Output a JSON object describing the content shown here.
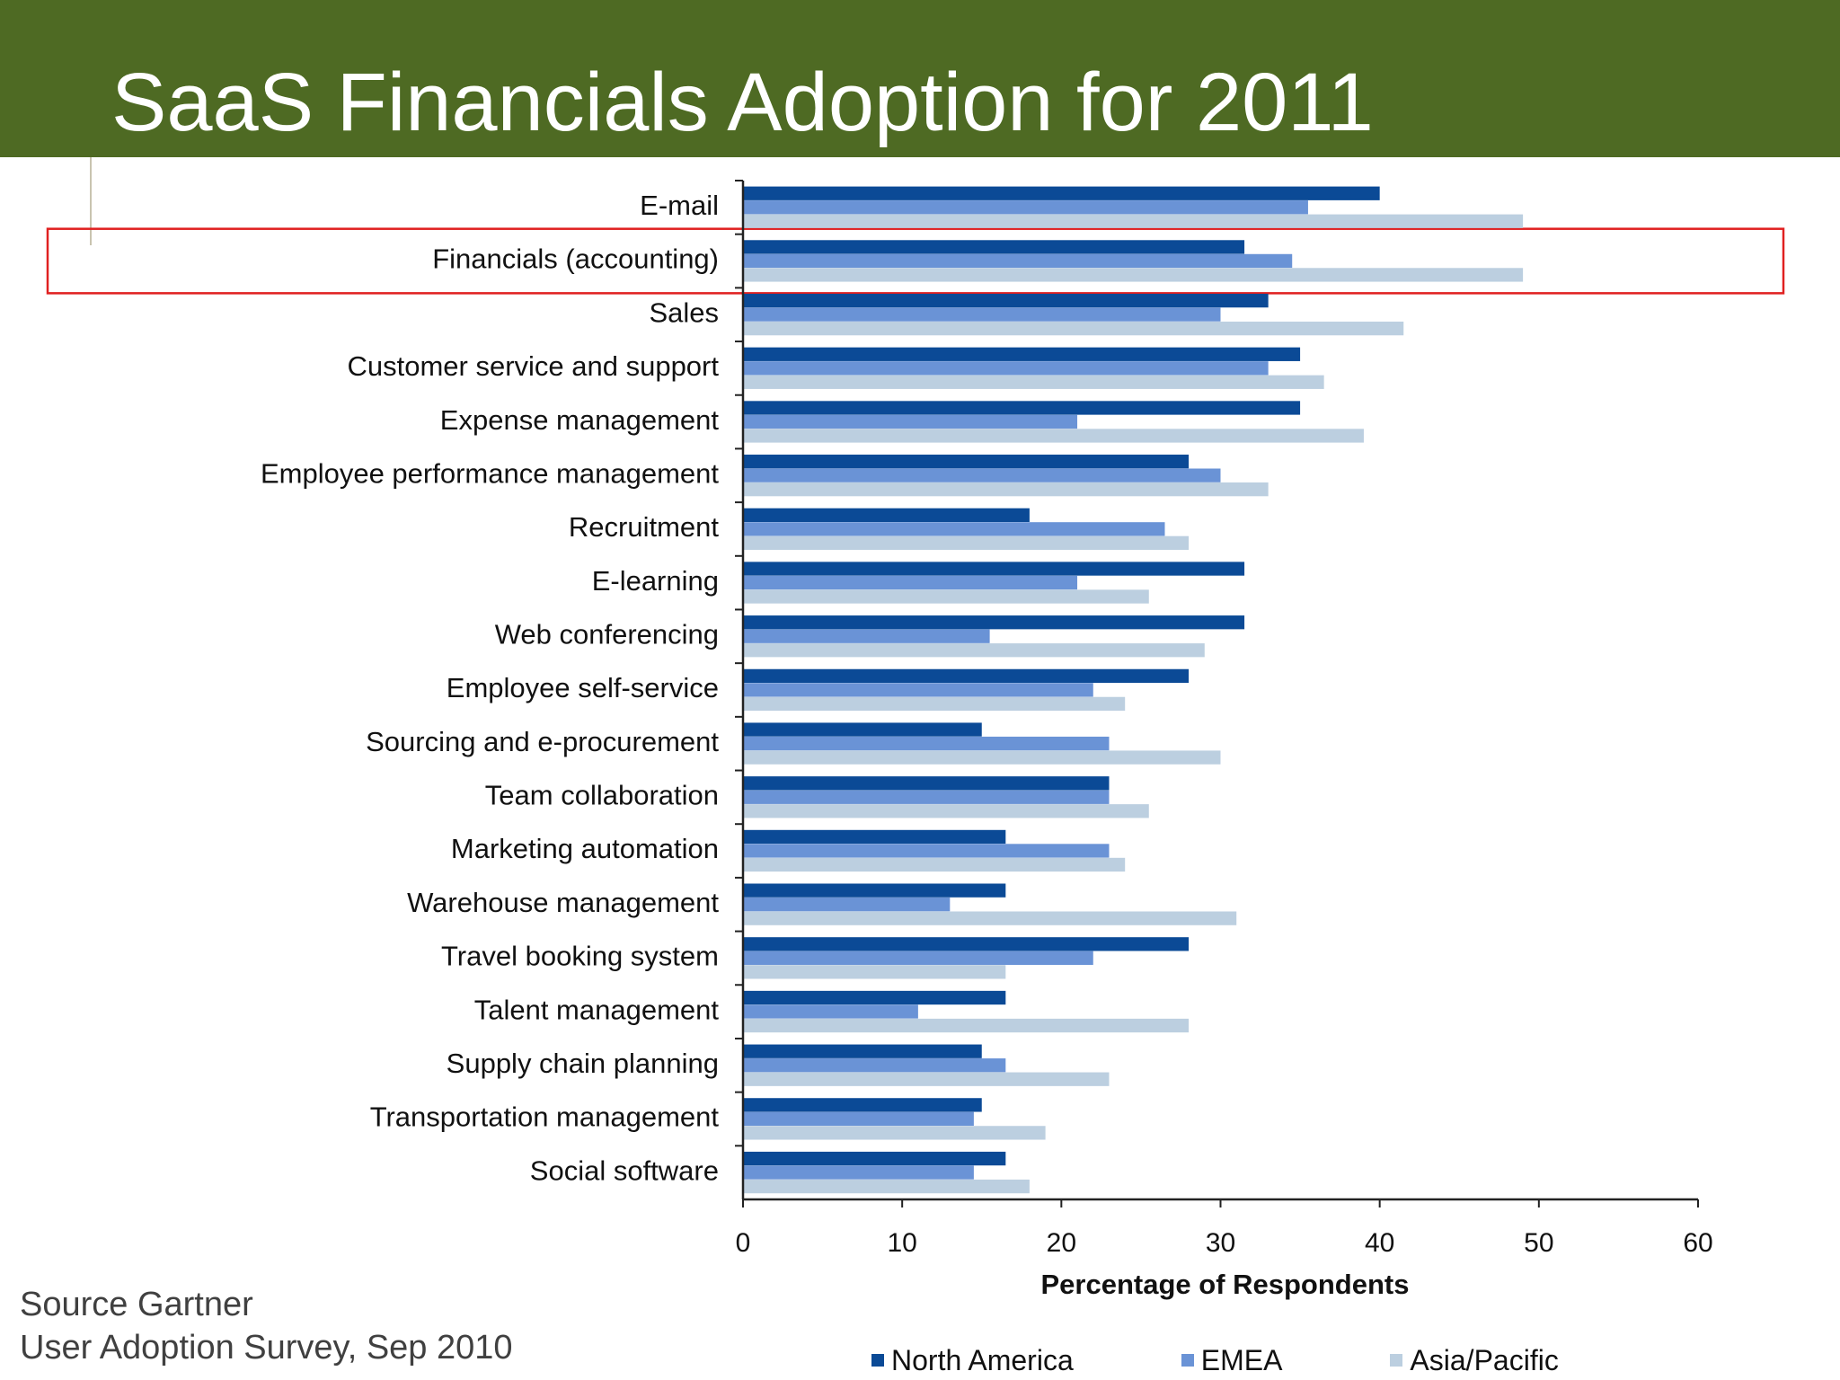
{
  "slide": {
    "title": "SaaS Financials Adoption for 2011",
    "source_line1": "Source Gartner",
    "source_line2": "User Adoption Survey, Sep 2010"
  },
  "colors": {
    "title_bar": "#4e6a23",
    "highlight_box": "#e02020"
  },
  "chart_data": {
    "type": "bar",
    "orientation": "horizontal",
    "xlabel": "Percentage of Respondents",
    "xlim": [
      0,
      60
    ],
    "xticks": [
      0,
      10,
      20,
      30,
      40,
      50,
      60
    ],
    "grid": false,
    "legend_position": "bottom",
    "highlighted_category": "Financials (accounting)",
    "categories": [
      "E-mail",
      "Financials (accounting)",
      "Sales",
      "Customer service and support",
      "Expense management",
      "Employee performance management",
      "Recruitment",
      "E-learning",
      "Web conferencing",
      "Employee self-service",
      "Sourcing and e-procurement",
      "Team collaboration",
      "Marketing automation",
      "Warehouse management",
      "Travel booking system",
      "Talent management",
      "Supply chain planning",
      "Transportation management",
      "Social software"
    ],
    "series": [
      {
        "name": "North America",
        "color": "#0b4a96",
        "values": [
          40,
          31.5,
          33,
          35,
          35,
          28,
          18,
          31.5,
          31.5,
          28,
          15,
          23,
          16.5,
          16.5,
          28,
          16.5,
          15,
          15,
          16.5
        ]
      },
      {
        "name": "EMEA",
        "color": "#6a93d6",
        "values": [
          35.5,
          34.5,
          30,
          33,
          21,
          30,
          26.5,
          21,
          15.5,
          22,
          23,
          23,
          23,
          13,
          22,
          11,
          16.5,
          14.5,
          14.5
        ]
      },
      {
        "name": "Asia/Pacific",
        "color": "#bccfe0",
        "values": [
          49,
          49,
          41.5,
          36.5,
          39,
          33,
          28,
          25.5,
          29,
          24,
          30,
          25.5,
          24,
          31,
          16.5,
          28,
          23,
          19,
          18
        ]
      }
    ]
  }
}
